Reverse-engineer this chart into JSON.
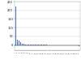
{
  "title": "",
  "values": [
    220,
    30,
    25,
    18,
    8,
    6,
    5,
    4,
    3,
    3,
    2,
    2,
    2,
    2,
    1,
    1,
    1,
    1,
    1,
    1,
    0,
    0,
    0,
    0,
    0,
    0,
    0,
    0,
    0,
    0,
    -1,
    -1,
    -1,
    -1,
    -1,
    -2,
    -2,
    -3,
    -3,
    -5
  ],
  "bar_color": "#4472c4",
  "background_color": "#ffffff",
  "plot_bg_color": "#ffffff",
  "ylim_min": -30,
  "ylim_max": 250,
  "yticks": [
    0,
    50,
    100,
    150,
    200,
    250
  ],
  "n_bars": 40
}
